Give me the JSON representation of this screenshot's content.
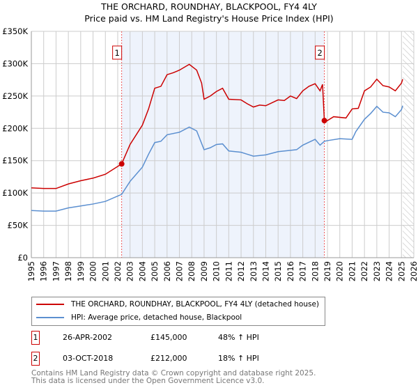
{
  "title": "THE ORCHARD, ROUNDHAY, BLACKPOOL, FY4 4LY",
  "subtitle": "Price paid vs. HM Land Registry's House Price Index (HPI)",
  "colors": {
    "property": "#cc0000",
    "hpi": "#5b8fd0",
    "shade": "#eef3fc",
    "grid": "#cccccc"
  },
  "chart_data": {
    "type": "line",
    "title": "THE ORCHARD, ROUNDHAY, BLACKPOOL, FY4 4LY",
    "ylabel": "",
    "xlabel": "",
    "xlim": [
      1995,
      2026
    ],
    "ylim": [
      0,
      350000
    ],
    "yticks": [
      0,
      50000,
      100000,
      150000,
      200000,
      250000,
      300000,
      350000
    ],
    "ytick_labels": [
      "£0",
      "£50K",
      "£100K",
      "£150K",
      "£200K",
      "£250K",
      "£300K",
      "£350K"
    ],
    "xticks": [
      1995,
      1996,
      1997,
      1998,
      1999,
      2000,
      2001,
      2002,
      2003,
      2004,
      2005,
      2006,
      2007,
      2008,
      2009,
      2010,
      2011,
      2012,
      2013,
      2014,
      2015,
      2016,
      2017,
      2018,
      2019,
      2020,
      2021,
      2022,
      2023,
      2024,
      2025,
      2026
    ],
    "grid": true,
    "shaded_range": [
      2002.32,
      2018.75
    ],
    "hatched_from": 2025.1,
    "series": [
      {
        "name": "THE ORCHARD, ROUNDHAY, BLACKPOOL, FY4 4LY (detached house)",
        "color": "#cc0000",
        "x": [
          1995,
          1996,
          1997,
          1998,
          1999,
          2000,
          2001,
          2002.32,
          2003,
          2004,
          2004.5,
          2005,
          2005.5,
          2006,
          2006.5,
          2007,
          2007.8,
          2008.4,
          2008.8,
          2009,
          2009.5,
          2010,
          2010.5,
          2011,
          2012,
          2012.5,
          2013,
          2013.5,
          2014,
          2015,
          2015.5,
          2016,
          2016.5,
          2017,
          2017.5,
          2018,
          2018.4,
          2018.6,
          2018.75,
          2019,
          2019.5,
          2020.5,
          2021,
          2021.5,
          2022,
          2022.5,
          2023,
          2023.5,
          2024,
          2024.5,
          2025,
          2025.1
        ],
        "y": [
          108000,
          107000,
          107000,
          114000,
          119000,
          123000,
          129000,
          145000,
          175000,
          205000,
          230000,
          262000,
          265000,
          283000,
          286000,
          290000,
          299000,
          290000,
          270000,
          245000,
          250000,
          257000,
          262000,
          245000,
          244000,
          238000,
          233000,
          236000,
          235000,
          244000,
          243000,
          250000,
          246000,
          258000,
          265000,
          269000,
          258000,
          268000,
          212000,
          212000,
          218000,
          216000,
          230000,
          231000,
          258000,
          264000,
          276000,
          266000,
          264000,
          258000,
          270000,
          276000
        ]
      },
      {
        "name": "HPI: Average price, detached house, Blackpool",
        "color": "#5b8fd0",
        "x": [
          1995,
          1996,
          1997,
          1998,
          1999,
          2000,
          2001,
          2002.32,
          2003,
          2004,
          2004.5,
          2005,
          2005.5,
          2006,
          2007,
          2007.8,
          2008.4,
          2009,
          2009.5,
          2010,
          2010.5,
          2011,
          2012,
          2012.5,
          2013,
          2014,
          2015,
          2016,
          2016.5,
          2017,
          2018,
          2018.4,
          2018.75,
          2019,
          2020,
          2021,
          2021.3,
          2022,
          2022.5,
          2023,
          2023.5,
          2024,
          2024.5,
          2025,
          2025.1
        ],
        "y": [
          73000,
          72000,
          72000,
          77000,
          80000,
          83000,
          87000,
          98000,
          118000,
          140000,
          160000,
          178000,
          180000,
          190000,
          194000,
          202000,
          196000,
          167000,
          170000,
          175000,
          176000,
          165000,
          163000,
          160000,
          157000,
          159000,
          164000,
          166000,
          167000,
          174000,
          183000,
          174000,
          180000,
          181000,
          184000,
          183000,
          195000,
          214000,
          223000,
          234000,
          225000,
          224000,
          218000,
          229000,
          235000
        ]
      }
    ],
    "annotations": [
      {
        "label": "1",
        "x": 2002.32,
        "y": 145000
      },
      {
        "label": "2",
        "x": 2018.75,
        "y": 212000
      }
    ]
  },
  "legend": {
    "property": "THE ORCHARD, ROUNDHAY, BLACKPOOL, FY4 4LY (detached house)",
    "hpi": "HPI: Average price, detached house, Blackpool"
  },
  "transactions": [
    {
      "num": "1",
      "date": "26-APR-2002",
      "price": "£145,000",
      "hpi": "48% ↑ HPI"
    },
    {
      "num": "2",
      "date": "03-OCT-2018",
      "price": "£212,000",
      "hpi": "18% ↑ HPI"
    }
  ],
  "footer": {
    "line1": "Contains HM Land Registry data © Crown copyright and database right 2025.",
    "line2": "This data is licensed under the Open Government Licence v3.0."
  }
}
